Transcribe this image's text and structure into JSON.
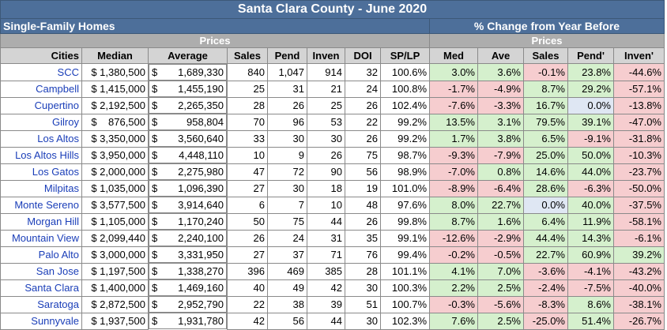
{
  "title": "Santa Clara County - June 2020",
  "section_left": "Single-Family Homes",
  "section_right": "% Change from Year Before",
  "sub_left": "Prices",
  "sub_right": "Prices",
  "headers": {
    "cities": "Cities",
    "median": "Median",
    "average": "Average",
    "sales": "Sales",
    "pend": "Pend",
    "inven": "Inven",
    "doi": "DOI",
    "splp": "SP/LP",
    "med_chg": "Med",
    "ave_chg": "Ave",
    "sales_chg": "Sales",
    "pend_chg": "Pend'",
    "inven_chg": "Inven'"
  },
  "rows": [
    {
      "city": "SCC",
      "median": "$ 1,380,500",
      "avg_sym": "$",
      "average": "1,689,330",
      "sales": "840",
      "pend": "1,047",
      "inven": "914",
      "doi": "32",
      "splp": "100.6%",
      "med": "3.0%",
      "ave": "3.6%",
      "s": "-0.1%",
      "p": "23.8%",
      "i": "-44.6%"
    },
    {
      "city": "Campbell",
      "median": "$ 1,415,000",
      "avg_sym": "$",
      "average": "1,455,190",
      "sales": "25",
      "pend": "31",
      "inven": "21",
      "doi": "24",
      "splp": "100.8%",
      "med": "-1.7%",
      "ave": "-4.9%",
      "s": "8.7%",
      "p": "29.2%",
      "i": "-57.1%"
    },
    {
      "city": "Cupertino",
      "median": "$ 2,192,500",
      "avg_sym": "$",
      "average": "2,265,350",
      "sales": "28",
      "pend": "26",
      "inven": "25",
      "doi": "26",
      "splp": "102.4%",
      "med": "-7.6%",
      "ave": "-3.3%",
      "s": "16.7%",
      "p": "0.0%",
      "i": "-13.8%"
    },
    {
      "city": "Gilroy",
      "median": "$    876,500",
      "avg_sym": "$",
      "average": "958,804",
      "sales": "70",
      "pend": "96",
      "inven": "53",
      "doi": "22",
      "splp": "99.2%",
      "med": "13.5%",
      "ave": "3.1%",
      "s": "79.5%",
      "p": "39.1%",
      "i": "-47.0%"
    },
    {
      "city": "Los Altos",
      "median": "$ 3,350,000",
      "avg_sym": "$",
      "average": "3,560,640",
      "sales": "33",
      "pend": "30",
      "inven": "30",
      "doi": "26",
      "splp": "99.2%",
      "med": "1.7%",
      "ave": "3.8%",
      "s": "6.5%",
      "p": "-9.1%",
      "i": "-31.8%"
    },
    {
      "city": "Los Altos Hills",
      "median": "$ 3,950,000",
      "avg_sym": "$",
      "average": "4,448,110",
      "sales": "10",
      "pend": "9",
      "inven": "26",
      "doi": "75",
      "splp": "98.7%",
      "med": "-9.3%",
      "ave": "-7.9%",
      "s": "25.0%",
      "p": "50.0%",
      "i": "-10.3%"
    },
    {
      "city": "Los Gatos",
      "median": "$ 2,000,000",
      "avg_sym": "$",
      "average": "2,275,980",
      "sales": "47",
      "pend": "72",
      "inven": "90",
      "doi": "56",
      "splp": "98.9%",
      "med": "-7.0%",
      "ave": "0.8%",
      "s": "14.6%",
      "p": "44.0%",
      "i": "-23.7%"
    },
    {
      "city": "Milpitas",
      "median": "$ 1,035,000",
      "avg_sym": "$",
      "average": "1,096,390",
      "sales": "27",
      "pend": "30",
      "inven": "18",
      "doi": "19",
      "splp": "101.0%",
      "med": "-8.9%",
      "ave": "-6.4%",
      "s": "28.6%",
      "p": "-6.3%",
      "i": "-50.0%"
    },
    {
      "city": "Monte Sereno",
      "median": "$ 3,577,500",
      "avg_sym": "$",
      "average": "3,914,640",
      "sales": "6",
      "pend": "7",
      "inven": "10",
      "doi": "48",
      "splp": "97.6%",
      "med": "8.0%",
      "ave": "22.7%",
      "s": "0.0%",
      "p": "40.0%",
      "i": "-37.5%"
    },
    {
      "city": "Morgan Hill",
      "median": "$ 1,105,000",
      "avg_sym": "$",
      "average": "1,170,240",
      "sales": "50",
      "pend": "75",
      "inven": "44",
      "doi": "26",
      "splp": "99.8%",
      "med": "8.7%",
      "ave": "1.6%",
      "s": "6.4%",
      "p": "11.9%",
      "i": "-58.1%"
    },
    {
      "city": "Mountain View",
      "median": "$ 2,099,440",
      "avg_sym": "$",
      "average": "2,240,100",
      "sales": "26",
      "pend": "24",
      "inven": "31",
      "doi": "35",
      "splp": "99.1%",
      "med": "-12.6%",
      "ave": "-2.9%",
      "s": "44.4%",
      "p": "14.3%",
      "i": "-6.1%"
    },
    {
      "city": "Palo Alto",
      "median": "$ 3,000,000",
      "avg_sym": "$",
      "average": "3,331,950",
      "sales": "27",
      "pend": "37",
      "inven": "71",
      "doi": "76",
      "splp": "99.4%",
      "med": "-0.2%",
      "ave": "-0.5%",
      "s": "22.7%",
      "p": "60.9%",
      "i": "39.2%"
    },
    {
      "city": "San Jose",
      "median": "$ 1,197,500",
      "avg_sym": "$",
      "average": "1,338,270",
      "sales": "396",
      "pend": "469",
      "inven": "385",
      "doi": "28",
      "splp": "101.1%",
      "med": "4.1%",
      "ave": "7.0%",
      "s": "-3.6%",
      "p": "-4.1%",
      "i": "-43.2%"
    },
    {
      "city": "Santa Clara",
      "median": "$ 1,400,000",
      "avg_sym": "$",
      "average": "1,469,160",
      "sales": "40",
      "pend": "49",
      "inven": "42",
      "doi": "30",
      "splp": "100.3%",
      "med": "2.2%",
      "ave": "2.5%",
      "s": "-2.4%",
      "p": "-7.5%",
      "i": "-40.0%"
    },
    {
      "city": "Saratoga",
      "median": "$ 2,872,500",
      "avg_sym": "$",
      "average": "2,952,790",
      "sales": "22",
      "pend": "38",
      "inven": "39",
      "doi": "51",
      "splp": "100.7%",
      "med": "-0.3%",
      "ave": "-5.6%",
      "s": "-8.3%",
      "p": "8.6%",
      "i": "-38.1%"
    },
    {
      "city": "Sunnyvale",
      "median": "$ 1,937,500",
      "avg_sym": "$",
      "average": "1,931,780",
      "sales": "42",
      "pend": "56",
      "inven": "44",
      "doi": "30",
      "splp": "102.3%",
      "med": "7.6%",
      "ave": "2.5%",
      "s": "-25.0%",
      "p": "51.4%",
      "i": "-26.7%"
    }
  ],
  "colors": {
    "header_blue": "#4d6f9a",
    "sub_gray": "#adadad",
    "col_header_gray": "#d4d4d4",
    "positive": "#d5f0cd",
    "negative": "#f6cdcf",
    "neutral": "#dfe7f3",
    "city_link": "#1a3eb8"
  }
}
